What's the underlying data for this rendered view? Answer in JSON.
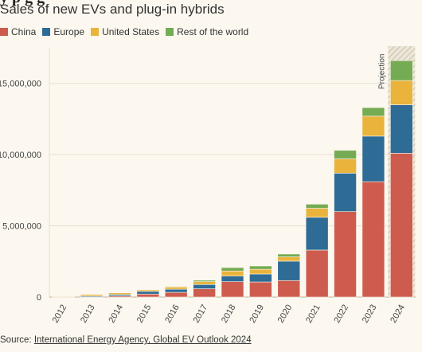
{
  "title_partial": "y p                       g                         g",
  "subtitle": "Sales of new EVs and plug-in hybrids",
  "legend": [
    {
      "label": "China",
      "color": "#cd5c4e"
    },
    {
      "label": "Europe",
      "color": "#2e6b95"
    },
    {
      "label": "United States",
      "color": "#eab33c"
    },
    {
      "label": "Rest of the world",
      "color": "#74ab53"
    }
  ],
  "projection_label": "Projection",
  "source_prefix": "Source: ",
  "source_link": "International Energy Agency, Global EV Outlook 2024",
  "chart_data": {
    "type": "bar",
    "stacked": true,
    "categories": [
      "2012",
      "2013",
      "2014",
      "2015",
      "2016",
      "2017",
      "2018",
      "2019",
      "2020",
      "2021",
      "2022",
      "2023",
      "2024"
    ],
    "series": [
      {
        "name": "China",
        "color": "#cd5c4e",
        "values": [
          10000,
          15000,
          75000,
          210000,
          330000,
          580000,
          1080000,
          1060000,
          1160000,
          3300000,
          6000000,
          8100000,
          10100000
        ]
      },
      {
        "name": "Europe",
        "color": "#2e6b95",
        "values": [
          20000,
          70000,
          100000,
          190000,
          220000,
          300000,
          390000,
          560000,
          1360000,
          2300000,
          2700000,
          3200000,
          3400000
        ]
      },
      {
        "name": "United States",
        "color": "#eab33c",
        "values": [
          50000,
          100000,
          120000,
          110000,
          160000,
          200000,
          360000,
          330000,
          300000,
          630000,
          1000000,
          1400000,
          1700000
        ]
      },
      {
        "name": "Rest of the world",
        "color": "#74ab53",
        "values": [
          5000,
          10000,
          25000,
          30000,
          40000,
          100000,
          240000,
          230000,
          200000,
          290000,
          600000,
          600000,
          1400000
        ]
      }
    ],
    "ylim": [
      0,
      17500000
    ],
    "yticks": [
      0,
      5000000,
      10000000,
      15000000
    ],
    "ytick_labels": [
      "0",
      "5,000,000",
      "10,000,000",
      "15,000,000"
    ],
    "projection_category": "2024",
    "grid": true,
    "legend_position": "top-left"
  }
}
